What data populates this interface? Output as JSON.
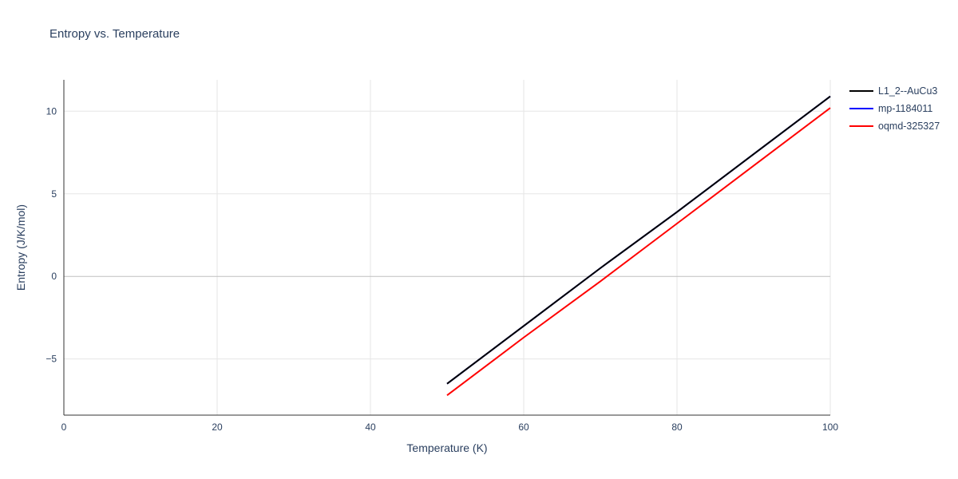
{
  "chart_data": {
    "type": "line",
    "title": "Entropy vs. Temperature",
    "xlabel": "Temperature (K)",
    "ylabel": "Entropy (J/K/mol)",
    "xlim": [
      0,
      100
    ],
    "ylim": [
      -8.4,
      11.9
    ],
    "xticks": [
      0,
      20,
      40,
      60,
      80,
      100
    ],
    "xtick_labels": [
      "0",
      "20",
      "40",
      "60",
      "80",
      "100"
    ],
    "yticks": [
      -5,
      0,
      5,
      10
    ],
    "ytick_labels": [
      "−5",
      "0",
      "5",
      "10"
    ],
    "grid": true,
    "zero_line": true,
    "legend_position": "top-right-outside",
    "colors": {
      "text": "#2a3f5f",
      "grid": "#e6e6e6",
      "zero_line": "#bfbfbf",
      "axis": "#333333"
    },
    "x": [
      50,
      60,
      70,
      80,
      90,
      100
    ],
    "series": [
      {
        "name": "L1_2--AuCu3",
        "color": "#000000",
        "values": [
          -6.5,
          -3.0,
          0.5,
          3.9,
          7.4,
          10.9
        ]
      },
      {
        "name": "mp-1184011",
        "color": "#0000ff",
        "values": [
          -6.5,
          -3.0,
          0.5,
          3.9,
          7.4,
          10.9
        ]
      },
      {
        "name": "oqmd-325327",
        "color": "#ff0000",
        "values": [
          -7.2,
          -3.7,
          -0.3,
          3.2,
          6.7,
          10.2
        ]
      }
    ],
    "draw_order": [
      1,
      0,
      2
    ]
  }
}
